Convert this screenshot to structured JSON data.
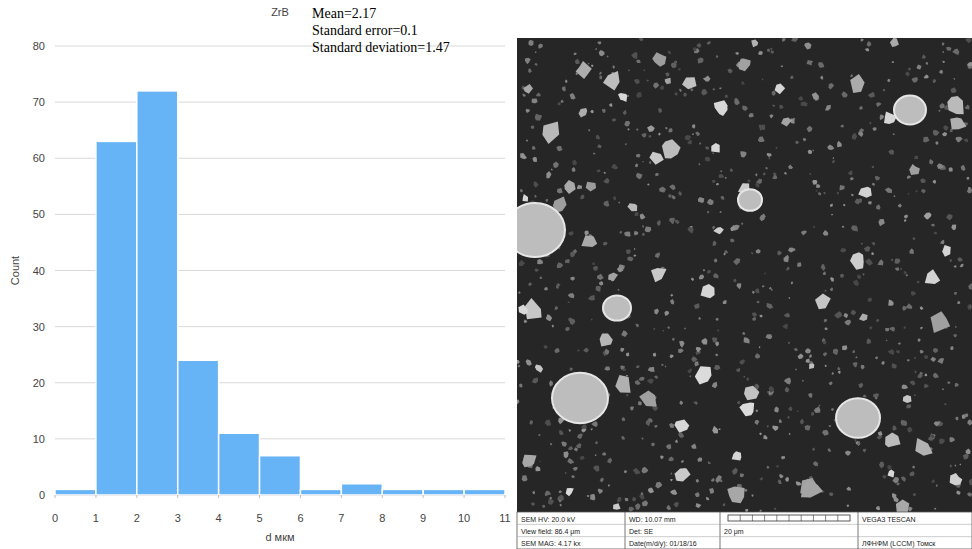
{
  "chart_data": {
    "type": "histogram",
    "title": "ZrB",
    "x_label": "d мкм",
    "y_label": "Count",
    "bins": [
      0,
      1,
      2,
      3,
      4,
      5,
      6,
      7,
      8,
      9,
      10,
      11
    ],
    "values": [
      1,
      63,
      72,
      24,
      11,
      7,
      1,
      2,
      1,
      1,
      1
    ],
    "color": "#66b3f5",
    "xlim": [
      0,
      11
    ],
    "ylim": [
      0,
      80
    ],
    "xticks": [
      0,
      1,
      2,
      3,
      4,
      5,
      6,
      7,
      8,
      9,
      10,
      11
    ],
    "yticks": [
      0,
      10,
      20,
      30,
      40,
      50,
      60,
      70,
      80
    ],
    "grid": true,
    "annotations": [
      "Mean=2.17",
      "Standard error=0.1",
      "Standard deviation=1.47"
    ]
  },
  "sem_image": {
    "info_bar": [
      [
        "SEM HV: 20.0 kV",
        "WD: 10.07 mm",
        "VEGA3 TESCAN"
      ],
      [
        "View field: 86.4 μm",
        "Det: SE",
        "20 μm"
      ],
      [
        "SEM MAG: 4.17 kx",
        "Date(m/d/y): 01/18/16",
        "ЛФНФМ (LCCM) Томск"
      ]
    ]
  }
}
